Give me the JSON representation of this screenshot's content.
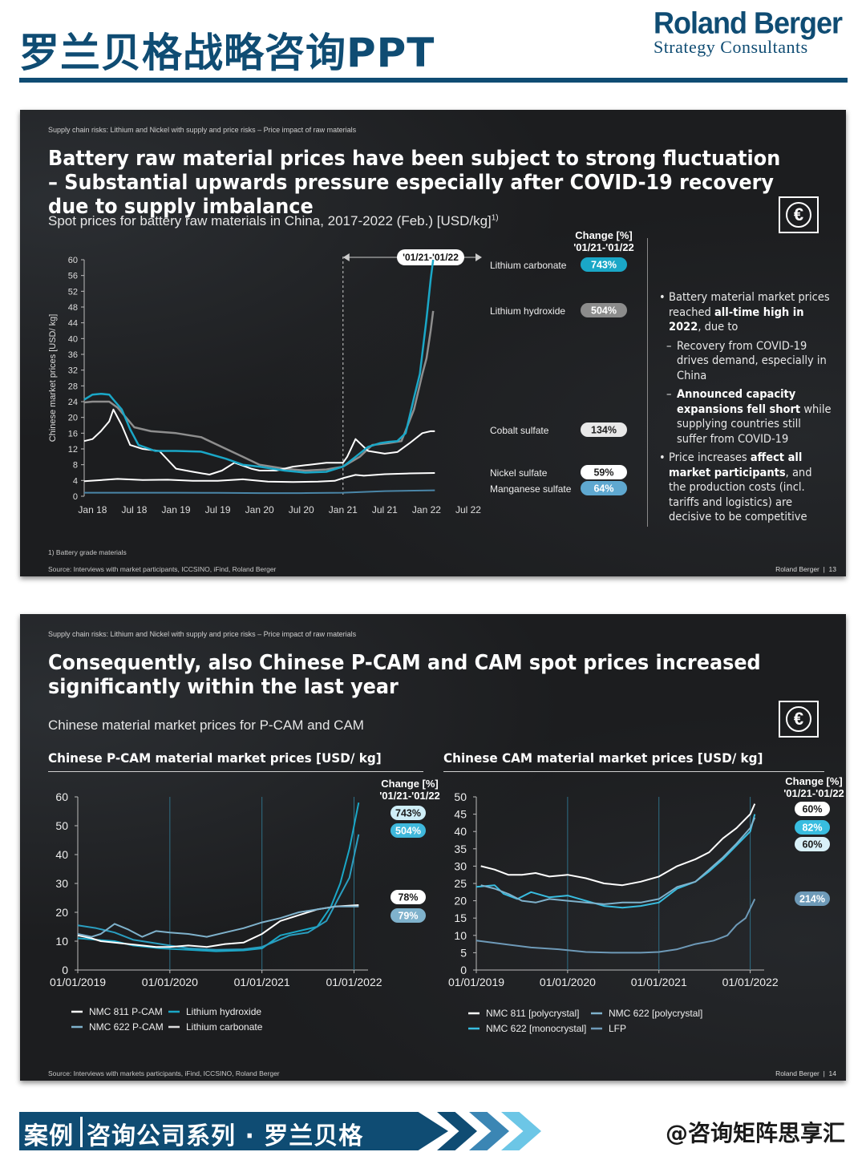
{
  "header": {
    "title": "罗兰贝格战略咨询PPT",
    "logo_name": "Roland Berger",
    "logo_sub": "Strategy Consultants"
  },
  "slide1": {
    "breadcrumb": "Supply chain risks: Lithium  and Nickel with  supply and price risks – Price impact of raw materials",
    "title": "Battery raw material prices have been subject to strong fluctuation – Substantial upwards pressure especially after COVID-19 recovery due to supply imbalance",
    "subtitle": "Spot prices for battery raw materials in China, 2017-2022 (Feb.) [USD/kg]",
    "subtitle_sup": "1)",
    "change_header_1": "Change [%]",
    "change_header_2": "'01/21-'01/22",
    "period_label": "'01/21-'01/22",
    "bullets": {
      "b1_pre": "Battery material market prices reached ",
      "b1_bold": "all-time high in 2022",
      "b1_post": ", due to",
      "b1_sub1": "Recovery from COVID-19 drives demand, especially in China",
      "b1_sub2_bold": "Announced capacity expansions fell short",
      "b1_sub2_post": " while supplying countries still suffer from COVID-19",
      "b2_pre": "Price increases ",
      "b2_bold": "affect all market participants",
      "b2_post": ", and the production costs (incl. tariffs and logistics) are decisive to be competitive"
    },
    "footnote": "1) Battery grade materials",
    "source": "Source: Interviews with market participants, ICCSINO, iFind, Roland Berger",
    "brand": "Roland Berger",
    "page": "13"
  },
  "slide2": {
    "breadcrumb": "Supply chain risks: Lithium  and Nickel with  supply and price risks – Price impact of raw materials",
    "title": "Consequently, also Chinese P-CAM and CAM spot prices increased significantly within the last year",
    "subtitle": "Chinese material market prices for P-CAM and CAM",
    "left_title": "Chinese P-CAM material market prices [USD/ kg]",
    "right_title": "Chinese CAM material market prices [USD/ kg]",
    "change_header_1": "Change [%]",
    "change_header_2": "'01/21-'01/22",
    "source": "Source: Interviews with markets participants, iFind, ICCSINO, Roland Berger",
    "brand": "Roland Berger",
    "page": "14"
  },
  "banner": {
    "part1": "案例",
    "part2": "咨询公司系列 · 罗兰贝格",
    "handle": "@咨询矩阵思享汇"
  },
  "colors": {
    "brand_blue": "#0f4c73",
    "slide_bg": "#1c1d1f",
    "lithium_carbonate": "#1aa7c7",
    "lithium_hydroxide": "#8e8e8e",
    "cobalt": "#ffffff",
    "nickel": "#ffffff",
    "manganese": "#4a86a8",
    "nmc811": "#ffffff",
    "nmc622": "#7fb2cc",
    "nmc622_mono": "#38bde0",
    "lfp": "#6e9ab8"
  },
  "chart_data": [
    {
      "type": "line",
      "ylabel": "Chinese market prices [USD/ kg]",
      "ylim": [
        0,
        60
      ],
      "yticks": [
        0,
        4,
        8,
        12,
        16,
        20,
        24,
        28,
        32,
        36,
        40,
        44,
        48,
        52,
        56,
        60
      ],
      "xtick_labels": [
        "Jan 18",
        "Jul 18",
        "Jan 19",
        "Jul 19",
        "Jan 20",
        "Jul 20",
        "Jan 21",
        "Jul 21",
        "Jan 22",
        "Jul 22"
      ],
      "x_domain": [
        2017.9,
        2022.75
      ],
      "grid": false,
      "series": [
        {
          "name": "Lithium carbonate",
          "change": "743%",
          "x": [
            2017.9,
            2018.0,
            2018.1,
            2018.2,
            2018.25,
            2018.35,
            2018.45,
            2018.55,
            2018.75,
            2019.0,
            2019.3,
            2019.6,
            2019.8,
            2020.0,
            2020.3,
            2020.55,
            2020.8,
            2021.0,
            2021.15,
            2021.3,
            2021.45,
            2021.55,
            2021.65,
            2021.75,
            2021.85,
            2021.92,
            2022.0,
            2022.05,
            2022.08
          ],
          "y": [
            24.5,
            25.8,
            26,
            25.8,
            24.5,
            22,
            17,
            13,
            11.5,
            11.5,
            11.3,
            9.5,
            8,
            7.5,
            6.5,
            6,
            6.2,
            7.5,
            10,
            12.5,
            13.5,
            13.8,
            14,
            16,
            25,
            31,
            45,
            55,
            60
          ]
        },
        {
          "name": "Lithium hydroxide",
          "change": "504%",
          "x": [
            2017.9,
            2018.0,
            2018.2,
            2018.3,
            2018.4,
            2018.5,
            2018.7,
            2019.0,
            2019.3,
            2019.6,
            2019.8,
            2020.0,
            2020.3,
            2020.55,
            2020.8,
            2021.0,
            2021.2,
            2021.35,
            2021.55,
            2021.7,
            2021.85,
            2021.95,
            2022.0,
            2022.05,
            2022.08
          ],
          "y": [
            23.8,
            24,
            24,
            22.5,
            20,
            17.5,
            16.5,
            16,
            15,
            12,
            10,
            8,
            7,
            6.5,
            6.8,
            7.5,
            10,
            13,
            13.5,
            14,
            22,
            31,
            35,
            42,
            47
          ]
        },
        {
          "name": "Cobalt sulfate",
          "change": "134%",
          "x": [
            2017.9,
            2018.0,
            2018.1,
            2018.2,
            2018.25,
            2018.35,
            2018.45,
            2018.6,
            2018.8,
            2019.0,
            2019.2,
            2019.4,
            2019.55,
            2019.7,
            2019.9,
            2020.0,
            2020.2,
            2020.4,
            2020.6,
            2020.8,
            2021.0,
            2021.05,
            2021.15,
            2021.3,
            2021.5,
            2021.65,
            2021.8,
            2021.95,
            2022.05,
            2022.1
          ],
          "y": [
            14,
            14.5,
            16.5,
            19,
            22,
            18,
            13,
            12,
            11.5,
            7,
            6.2,
            5.5,
            6.5,
            8.5,
            7,
            6.5,
            6.5,
            7.5,
            8,
            8.5,
            8.5,
            10,
            14.5,
            11.5,
            10.8,
            11.2,
            13.5,
            16,
            16.5,
            16.5
          ]
        },
        {
          "name": "Nickel sulfate",
          "change": "59%",
          "x": [
            2017.9,
            2018.3,
            2018.6,
            2018.9,
            2019.2,
            2019.5,
            2019.8,
            2020.1,
            2020.4,
            2020.7,
            2020.9,
            2021.0,
            2021.15,
            2021.25,
            2021.5,
            2021.8,
            2022.1
          ],
          "y": [
            3.8,
            4.4,
            4.1,
            4.2,
            3.9,
            3.9,
            4.3,
            3.7,
            3.6,
            3.7,
            3.9,
            4.6,
            5.4,
            5.2,
            5.6,
            5.8,
            5.9
          ]
        },
        {
          "name": "Manganese sulfate",
          "change": "64%",
          "x": [
            2017.9,
            2018.5,
            2019.0,
            2019.5,
            2020.0,
            2020.5,
            2021.0,
            2021.5,
            2022.1
          ],
          "y": [
            0.9,
            0.9,
            0.9,
            0.85,
            0.8,
            0.8,
            0.9,
            1.3,
            1.5
          ]
        }
      ],
      "marker": {
        "x": 2021.0,
        "label": "'01/21-'01/22"
      }
    },
    {
      "type": "line",
      "title": "Chinese P-CAM material market prices [USD/ kg]",
      "ylim": [
        0,
        60
      ],
      "yticks": [
        0,
        10,
        20,
        30,
        40,
        50,
        60
      ],
      "xtick_labels": [
        "01/01/2019",
        "01/01/2020",
        "01/01/2021",
        "01/01/2022"
      ],
      "x_domain": [
        2019.0,
        2022.1
      ],
      "legend": "bottom",
      "series": [
        {
          "name": "Lithium carbonate",
          "change": "743%",
          "x": [
            2019.0,
            2019.2,
            2019.4,
            2019.6,
            2019.9,
            2020.2,
            2020.5,
            2020.8,
            2021.0,
            2021.2,
            2021.4,
            2021.6,
            2021.75,
            2021.85,
            2021.95,
            2022.05
          ],
          "y": [
            11,
            10.5,
            10,
            8.5,
            7.5,
            7,
            6.5,
            6.8,
            7.5,
            12,
            13.5,
            15,
            22,
            30,
            42,
            58
          ]
        },
        {
          "name": "Lithium hydroxide",
          "change": "504%",
          "x": [
            2019.0,
            2019.2,
            2019.4,
            2019.6,
            2019.9,
            2020.2,
            2020.5,
            2020.8,
            2021.0,
            2021.3,
            2021.5,
            2021.7,
            2021.85,
            2021.95,
            2022.05
          ],
          "y": [
            15.5,
            14.5,
            13,
            10.5,
            9,
            7.5,
            7,
            7.2,
            8,
            12,
            13,
            17,
            26,
            32,
            47
          ]
        },
        {
          "name": "NMC 811 P-CAM",
          "change": "78%",
          "x": [
            2019.0,
            2019.15,
            2019.25,
            2019.4,
            2019.55,
            2019.7,
            2019.85,
            2020.0,
            2020.2,
            2020.4,
            2020.6,
            2020.8,
            2021.0,
            2021.2,
            2021.4,
            2021.6,
            2021.8,
            2022.05
          ],
          "y": [
            12,
            11,
            10,
            9.5,
            9,
            8.5,
            8,
            8,
            8.5,
            8,
            9,
            9.5,
            12.5,
            17,
            19,
            21,
            22,
            22.5
          ]
        },
        {
          "name": "NMC 622 P-CAM",
          "change": "79%",
          "x": [
            2019.0,
            2019.15,
            2019.25,
            2019.4,
            2019.55,
            2019.7,
            2019.85,
            2020.0,
            2020.2,
            2020.4,
            2020.6,
            2020.8,
            2021.0,
            2021.2,
            2021.4,
            2021.6,
            2021.8,
            2022.05
          ],
          "y": [
            12.5,
            11.5,
            12.5,
            16,
            14,
            11.5,
            13.5,
            13,
            12.5,
            11.5,
            13,
            14.5,
            16.5,
            18,
            20,
            21,
            22,
            22
          ]
        }
      ]
    },
    {
      "type": "line",
      "title": "Chinese CAM material market prices [USD/ kg]",
      "ylim": [
        0,
        50
      ],
      "yticks": [
        0,
        5,
        10,
        15,
        20,
        25,
        30,
        35,
        40,
        45,
        50
      ],
      "xtick_labels": [
        "01/01/2019",
        "01/01/2020",
        "01/01/2021",
        "01/01/2022"
      ],
      "x_domain": [
        2019.0,
        2022.1
      ],
      "legend": "bottom",
      "series": [
        {
          "name": "NMC 811 [polycrystal]",
          "change": "60%",
          "x": [
            2019.05,
            2019.2,
            2019.35,
            2019.5,
            2019.65,
            2019.8,
            2020.0,
            2020.2,
            2020.4,
            2020.6,
            2020.8,
            2021.0,
            2021.2,
            2021.4,
            2021.55,
            2021.7,
            2021.85,
            2022.0,
            2022.05
          ],
          "y": [
            30,
            29,
            27.5,
            27.5,
            28,
            27,
            27.5,
            26.5,
            25,
            24.5,
            25.5,
            27,
            30,
            32,
            34,
            38,
            41,
            45,
            48
          ]
        },
        {
          "name": "NMC 622 [monocrystal]",
          "change": "82%",
          "x": [
            2019.0,
            2019.2,
            2019.3,
            2019.45,
            2019.6,
            2019.8,
            2020.0,
            2020.2,
            2020.4,
            2020.6,
            2020.8,
            2021.0,
            2021.2,
            2021.4,
            2021.55,
            2021.7,
            2021.85,
            2022.0,
            2022.05
          ],
          "y": [
            24,
            24.5,
            22,
            20.5,
            22.5,
            21,
            21.5,
            20,
            18.5,
            18,
            18.5,
            19.5,
            23.5,
            25.5,
            28.5,
            32,
            36,
            40,
            45
          ]
        },
        {
          "name": "NMC 622 [polycrystal]",
          "change": "60%",
          "x": [
            2019.05,
            2019.2,
            2019.35,
            2019.5,
            2019.65,
            2019.8,
            2020.0,
            2020.2,
            2020.4,
            2020.6,
            2020.8,
            2021.0,
            2021.2,
            2021.4,
            2021.55,
            2021.7,
            2021.85,
            2022.0,
            2022.05
          ],
          "y": [
            24.5,
            23.5,
            22,
            20,
            19.5,
            20.5,
            20,
            19.5,
            19,
            19.5,
            19.5,
            20.5,
            24,
            25.5,
            29,
            32.5,
            36.5,
            41,
            44
          ]
        },
        {
          "name": "LFP",
          "change": "214%",
          "x": [
            2019.0,
            2019.3,
            2019.6,
            2019.9,
            2020.2,
            2020.5,
            2020.8,
            2021.0,
            2021.2,
            2021.4,
            2021.6,
            2021.75,
            2021.85,
            2021.95,
            2022.05
          ],
          "y": [
            8.5,
            7.5,
            6.5,
            6,
            5.2,
            5,
            5,
            5.2,
            6,
            7.5,
            8.5,
            10,
            13,
            15,
            20.5
          ]
        }
      ]
    }
  ]
}
